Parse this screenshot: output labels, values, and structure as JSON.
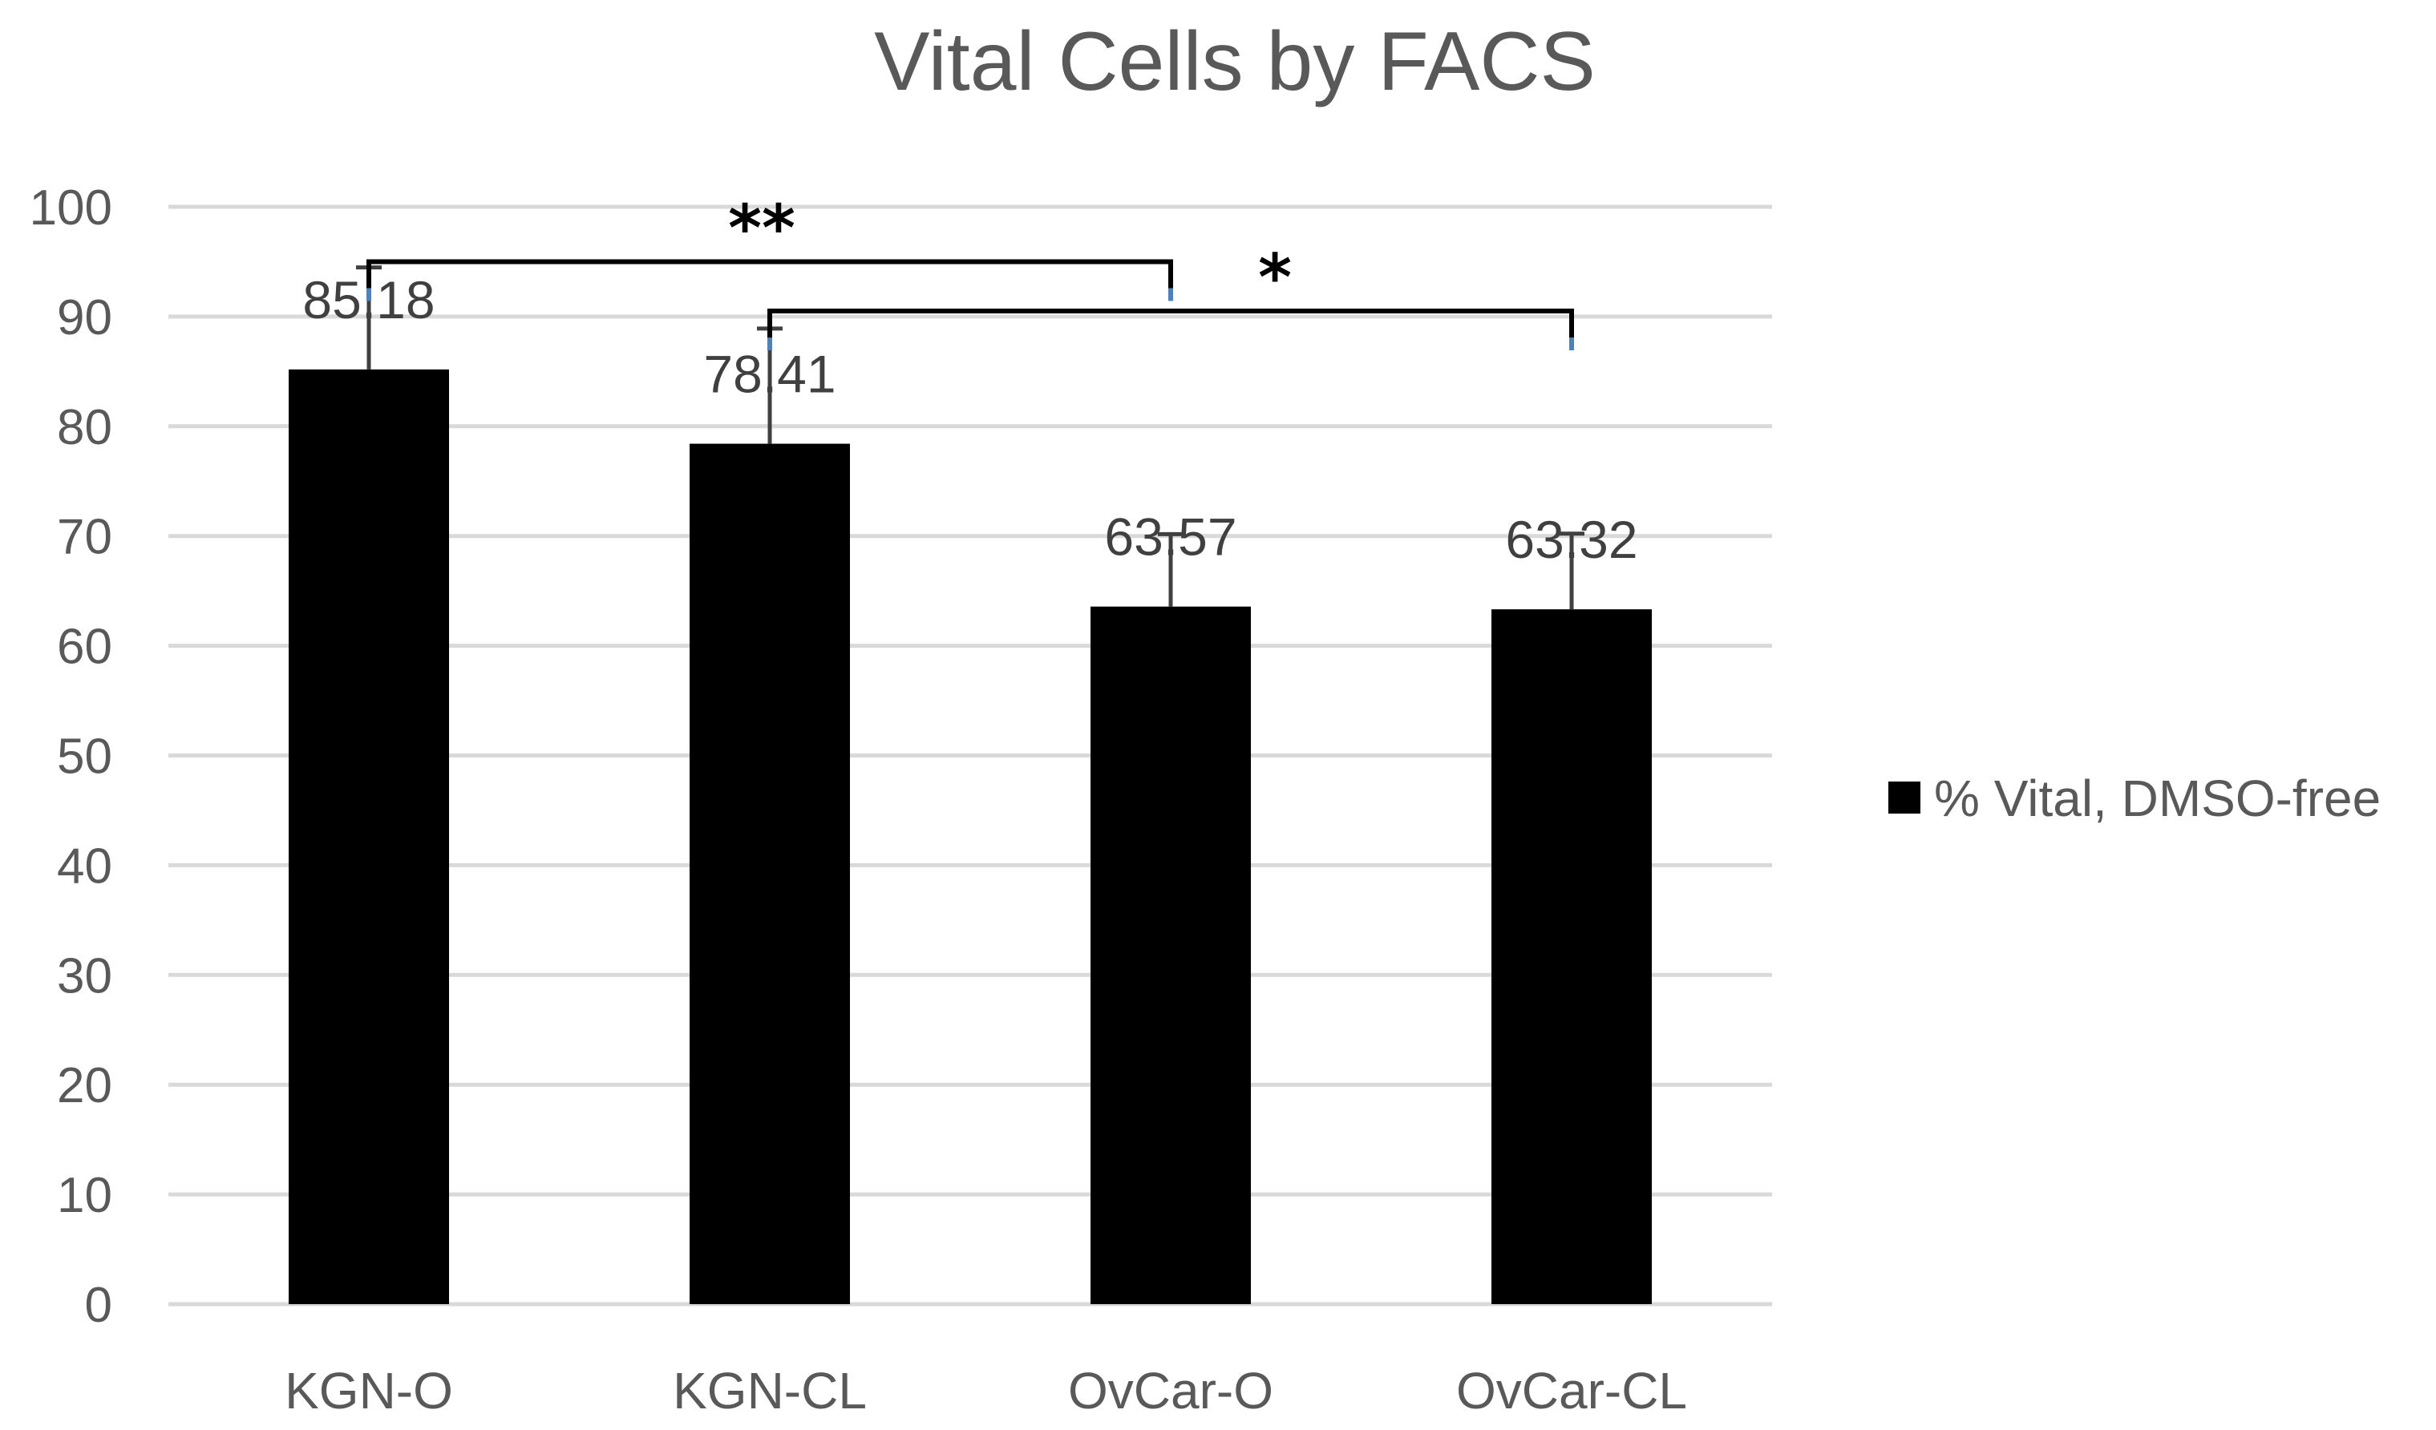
{
  "chart_data": {
    "type": "bar",
    "title": "Vital Cells by FACS",
    "categories": [
      "KGN-O",
      "KGN-CL",
      "OvCar-O",
      "OvCar-CL"
    ],
    "series": [
      {
        "name": "% Vital, DMSO-free",
        "values": [
          85.18,
          78.41,
          63.57,
          63.32
        ],
        "error_plus": [
          9.3,
          10.5,
          6.6,
          6.9
        ],
        "data_labels": [
          "85.18",
          "78.41",
          "63.57",
          "63.32"
        ]
      }
    ],
    "ylim": [
      0,
      100
    ],
    "yticks": [
      0,
      10,
      20,
      30,
      40,
      50,
      60,
      70,
      80,
      90,
      100
    ],
    "xlabel": "",
    "ylabel": "",
    "grid": true,
    "legend_position": "right",
    "significance": [
      {
        "from": 0,
        "to": 2,
        "level": 95,
        "label": "**"
      },
      {
        "from": 1,
        "to": 3,
        "level": 90.5,
        "label": "*"
      }
    ],
    "colors": {
      "bar": "#000000",
      "grid": "#d9d9d9",
      "axis_text": "#595959",
      "title": "#595959",
      "data_label": "#404040",
      "bracket": "#000000",
      "bracket_tick": "#4f81bd"
    }
  }
}
